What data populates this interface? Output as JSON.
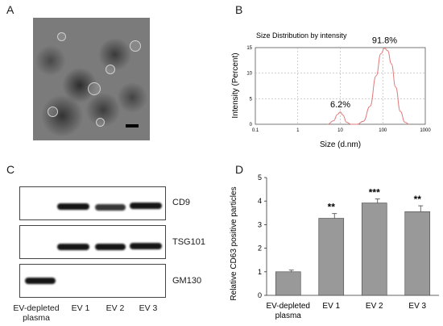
{
  "panels": {
    "a": "A",
    "b": "B",
    "c": "C",
    "d": "D"
  },
  "colors": {
    "dls_curve": "#e07b7b",
    "bar_fill": "#999999",
    "grid": "#b0b0b0"
  },
  "western_blot": {
    "proteins": [
      "CD9",
      "TSG101",
      "GM130"
    ],
    "lanes": [
      "EV-depleted\nplasma",
      "EV 1",
      "EV 2",
      "EV 3"
    ]
  },
  "chart_data": [
    {
      "type": "line",
      "title": "Size Distribution by intensity",
      "xlabel": "Size (d.nm)",
      "ylabel": "Intensity (Percent)",
      "xscale": "log",
      "xlim": [
        0.1,
        1000
      ],
      "ylim": [
        0,
        15
      ],
      "xticks": [
        "0.1",
        "1",
        "10",
        "100",
        "1000"
      ],
      "yticks": [
        "0",
        "5",
        "10",
        "15"
      ],
      "grid": true,
      "series": [
        {
          "x": [
            5,
            7,
            8.5,
            10,
            11.5,
            14,
            18,
            25,
            35,
            50,
            70,
            90,
            110,
            130,
            160,
            200,
            260,
            330,
            420
          ],
          "y": [
            0,
            0.7,
            1.9,
            2.4,
            1.8,
            0.4,
            0,
            0,
            0.6,
            3.5,
            9.5,
            13.8,
            14.9,
            14.4,
            11.8,
            7.3,
            2.5,
            0.4,
            0
          ]
        }
      ],
      "annotations": [
        {
          "text": "6.2%",
          "x": 10,
          "y": 2.4
        },
        {
          "text": "91.8%",
          "x": 110,
          "y": 14.9
        }
      ]
    },
    {
      "type": "bar",
      "ylabel": "Relative CD63 positive particles",
      "categories": [
        "EV-depleted\nplasma",
        "EV 1",
        "EV 2",
        "EV 3"
      ],
      "values": [
        1.0,
        3.27,
        3.92,
        3.55
      ],
      "errors": [
        0.07,
        0.2,
        0.17,
        0.25
      ],
      "significance": [
        "",
        "**",
        "***",
        "**"
      ],
      "ylim": [
        0,
        5
      ],
      "yticks": [
        "0",
        "1",
        "2",
        "3",
        "4",
        "5"
      ]
    }
  ]
}
